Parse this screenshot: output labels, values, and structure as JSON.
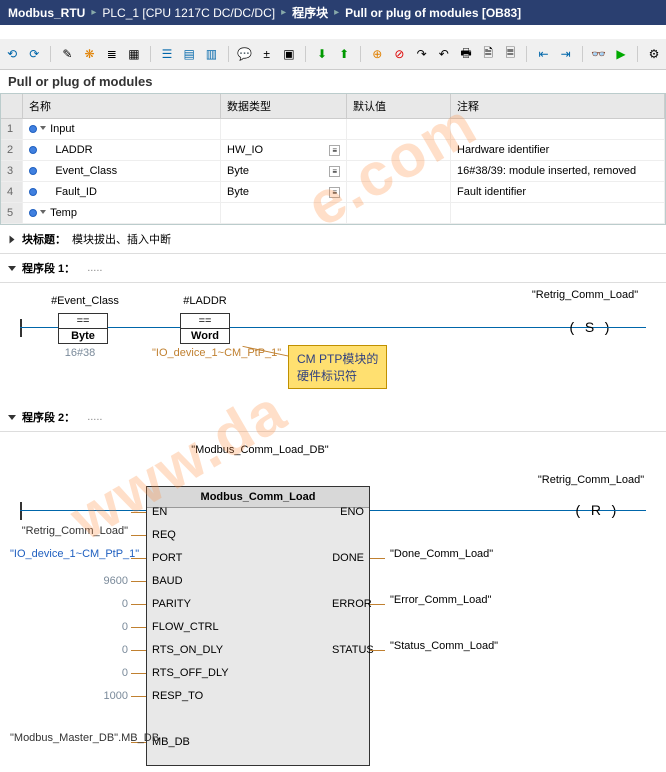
{
  "titlebar": {
    "project": "Modbus_RTU",
    "plc": "PLC_1 [CPU 1217C DC/DC/DC]",
    "folder": "程序块",
    "block": "Pull or plug of modules [OB83]"
  },
  "block_name": "Pull or plug of modules",
  "columns": {
    "name": "名称",
    "type": "数据类型",
    "default": "默认值",
    "comment": "注释"
  },
  "rows": [
    {
      "n": "1",
      "kind": "header",
      "name": "Input"
    },
    {
      "n": "2",
      "kind": "var",
      "name": "LADDR",
      "type": "HW_IO",
      "comment": "Hardware identifier"
    },
    {
      "n": "3",
      "kind": "var",
      "name": "Event_Class",
      "type": "Byte",
      "comment": "16#38/39: module inserted, removed"
    },
    {
      "n": "4",
      "kind": "var",
      "name": "Fault_ID",
      "type": "Byte",
      "comment": "Fault identifier"
    },
    {
      "n": "5",
      "kind": "header",
      "name": "Temp"
    }
  ],
  "block_title": {
    "label": "块标题：",
    "text": "模块拔出、插入中断"
  },
  "seg1": {
    "title": "程序段 1：",
    "cmp1_top": "#Event_Class",
    "cmp1_type": "Byte",
    "cmp1_val": "16#38",
    "cmp2_top": "#LADDR",
    "cmp2_type": "Word",
    "cmp2_tag": "\"IO_device_1~CM_PtP_1\"",
    "coil_name": "\"Retrig_Comm_Load\"",
    "coil_type": "S",
    "tooltip": {
      "l1": "CM PTP模块的",
      "l2": "硬件标识符"
    }
  },
  "seg2": {
    "title": "程序段 2：",
    "db": "\"Modbus_Comm_Load_DB\"",
    "fb_name": "Modbus_Comm_Load",
    "coil_name": "\"Retrig_Comm_Load\"",
    "coil_type": "R",
    "pins_l": [
      "EN",
      "REQ",
      "PORT",
      "BAUD",
      "PARITY",
      "FLOW_CTRL",
      "RTS_ON_DLY",
      "RTS_OFF_DLY",
      "RESP_TO",
      "",
      "MB_DB"
    ],
    "pins_r": [
      "ENO",
      "",
      "DONE",
      "",
      "ERROR",
      "",
      "STATUS"
    ],
    "vals_l": [
      "",
      "\"Retrig_Comm_Load\"",
      "\"IO_device_1~CM_PtP_1\"",
      "9600",
      "0",
      "0",
      "0",
      "0",
      "1000",
      "",
      "\"Modbus_Master_DB\".MB_DB"
    ],
    "vals_r": [
      "",
      "",
      "\"Done_Comm_Load\"",
      "",
      "\"Error_Comm_Load\"",
      "",
      "\"Status_Comm_Load\""
    ]
  },
  "colors": {
    "wire": "#0066aa",
    "tag": "#c08030",
    "const": "#7a8a9a"
  }
}
